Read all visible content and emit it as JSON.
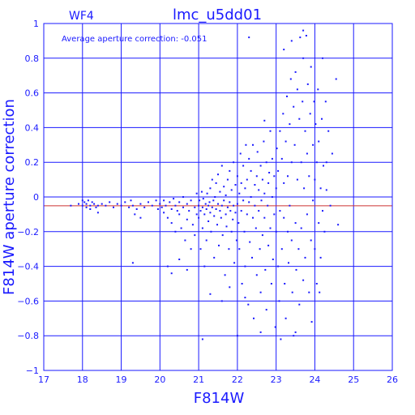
{
  "chart_data": {
    "type": "scatter",
    "title": "lmc_u5dd01",
    "panel_label": "WF4",
    "xlabel": "F814W",
    "ylabel": "F814W aperture correction",
    "annotation": "Average aperture correction: -0.051",
    "xlim": [
      17,
      26
    ],
    "ylim": [
      -1,
      1
    ],
    "x_ticks": [
      17,
      18,
      19,
      20,
      21,
      22,
      23,
      24,
      25,
      26
    ],
    "y_ticks": [
      -1,
      -0.8,
      -0.6,
      -0.4,
      -0.2,
      0,
      0.2,
      0.4,
      0.6,
      0.8,
      1
    ],
    "grid": true,
    "reference_line": {
      "y": -0.051,
      "color": "#cc3333"
    },
    "colors": {
      "axes": "#1a1aff",
      "points": "#1a1aff"
    },
    "points": [
      [
        17.7,
        -0.05
      ],
      [
        17.9,
        -0.04
      ],
      [
        18.0,
        -0.02
      ],
      [
        18.0,
        -0.05
      ],
      [
        18.05,
        -0.03
      ],
      [
        18.1,
        -0.06
      ],
      [
        18.1,
        -0.04
      ],
      [
        18.15,
        -0.02
      ],
      [
        18.2,
        -0.05
      ],
      [
        18.2,
        -0.07
      ],
      [
        18.25,
        -0.03
      ],
      [
        18.3,
        -0.04
      ],
      [
        18.35,
        -0.06
      ],
      [
        18.4,
        -0.05
      ],
      [
        18.4,
        -0.09
      ],
      [
        18.5,
        -0.04
      ],
      [
        18.6,
        -0.05
      ],
      [
        18.7,
        -0.03
      ],
      [
        18.8,
        -0.06
      ],
      [
        18.9,
        -0.04
      ],
      [
        19.0,
        -0.05
      ],
      [
        19.1,
        -0.03
      ],
      [
        19.2,
        -0.06
      ],
      [
        19.25,
        -0.02
      ],
      [
        19.3,
        -0.05
      ],
      [
        19.35,
        -0.1
      ],
      [
        19.4,
        -0.07
      ],
      [
        19.5,
        -0.04
      ],
      [
        19.5,
        -0.12
      ],
      [
        19.6,
        -0.06
      ],
      [
        19.7,
        -0.03
      ],
      [
        19.8,
        -0.05
      ],
      [
        19.9,
        -0.02
      ],
      [
        19.95,
        -0.07
      ],
      [
        19.3,
        -0.38
      ],
      [
        20.0,
        -0.04
      ],
      [
        20.05,
        -0.06
      ],
      [
        20.1,
        -0.02
      ],
      [
        20.1,
        -0.09
      ],
      [
        20.15,
        -0.05
      ],
      [
        20.2,
        -0.12
      ],
      [
        20.25,
        -0.03
      ],
      [
        20.3,
        -0.07
      ],
      [
        20.3,
        -0.15
      ],
      [
        20.35,
        -0.01
      ],
      [
        20.4,
        -0.05
      ],
      [
        20.4,
        -0.2
      ],
      [
        20.45,
        -0.08
      ],
      [
        20.5,
        -0.03
      ],
      [
        20.5,
        -0.1
      ],
      [
        20.55,
        -0.18
      ],
      [
        20.6,
        -0.06
      ],
      [
        20.6,
        0.0
      ],
      [
        20.65,
        -0.25
      ],
      [
        20.7,
        -0.04
      ],
      [
        20.7,
        -0.13
      ],
      [
        20.75,
        -0.08
      ],
      [
        20.8,
        -0.3
      ],
      [
        20.8,
        -0.02
      ],
      [
        20.85,
        -0.16
      ],
      [
        20.9,
        -0.06
      ],
      [
        20.9,
        -0.22
      ],
      [
        20.95,
        -0.1
      ],
      [
        20.95,
        0.02
      ],
      [
        20.2,
        -0.4
      ],
      [
        20.3,
        -0.44
      ],
      [
        20.5,
        -0.36
      ],
      [
        20.7,
        -0.42
      ],
      [
        21.0,
        -0.05
      ],
      [
        21.0,
        -0.12
      ],
      [
        21.02,
        -0.02
      ],
      [
        21.05,
        -0.08
      ],
      [
        21.05,
        -0.3
      ],
      [
        21.08,
        0.03
      ],
      [
        21.1,
        -0.06
      ],
      [
        21.1,
        -0.18
      ],
      [
        21.12,
        -0.01
      ],
      [
        21.15,
        -0.1
      ],
      [
        21.15,
        -0.4
      ],
      [
        21.18,
        -0.04
      ],
      [
        21.2,
        -0.07
      ],
      [
        21.2,
        -0.25
      ],
      [
        21.22,
        0.02
      ],
      [
        21.25,
        -0.05
      ],
      [
        21.25,
        -0.14
      ],
      [
        21.28,
        -0.03
      ],
      [
        21.3,
        -0.09
      ],
      [
        21.3,
        0.05
      ],
      [
        21.32,
        -0.2
      ],
      [
        21.35,
        -0.06
      ],
      [
        21.35,
        0.1
      ],
      [
        21.38,
        -0.02
      ],
      [
        21.4,
        -0.11
      ],
      [
        21.4,
        -0.35
      ],
      [
        21.42,
        0.0
      ],
      [
        21.45,
        -0.07
      ],
      [
        21.45,
        0.08
      ],
      [
        21.48,
        -0.16
      ],
      [
        21.5,
        -0.04
      ],
      [
        21.5,
        0.13
      ],
      [
        21.52,
        -0.28
      ],
      [
        21.55,
        -0.08
      ],
      [
        21.55,
        0.03
      ],
      [
        21.58,
        -0.12
      ],
      [
        21.6,
        -0.05
      ],
      [
        21.6,
        0.18
      ],
      [
        21.62,
        -0.22
      ],
      [
        21.65,
        -0.02
      ],
      [
        21.65,
        0.06
      ],
      [
        21.68,
        -0.45
      ],
      [
        21.7,
        -0.1
      ],
      [
        21.7,
        0.01
      ],
      [
        21.72,
        -0.17
      ],
      [
        21.75,
        -0.06
      ],
      [
        21.75,
        0.1
      ],
      [
        21.78,
        -0.3
      ],
      [
        21.8,
        -0.03
      ],
      [
        21.8,
        0.15
      ],
      [
        21.82,
        -0.08
      ],
      [
        21.85,
        -0.2
      ],
      [
        21.85,
        0.04
      ],
      [
        21.88,
        -0.13
      ],
      [
        21.9,
        -0.05
      ],
      [
        21.9,
        0.2
      ],
      [
        21.92,
        -0.38
      ],
      [
        21.95,
        -0.09
      ],
      [
        21.95,
        0.07
      ],
      [
        21.98,
        -0.25
      ],
      [
        21.1,
        -0.82
      ],
      [
        21.3,
        -0.56
      ],
      [
        21.6,
        -0.6
      ],
      [
        21.8,
        -0.52
      ],
      [
        22.0,
        -0.04
      ],
      [
        22.0,
        0.12
      ],
      [
        22.03,
        -0.15
      ],
      [
        22.05,
        0.02
      ],
      [
        22.05,
        -0.3
      ],
      [
        22.08,
        0.25
      ],
      [
        22.1,
        -0.08
      ],
      [
        22.1,
        0.08
      ],
      [
        22.12,
        -0.5
      ],
      [
        22.15,
        -0.02
      ],
      [
        22.15,
        0.18
      ],
      [
        22.18,
        -0.2
      ],
      [
        22.2,
        0.05
      ],
      [
        22.2,
        -0.4
      ],
      [
        22.22,
        0.3
      ],
      [
        22.25,
        -0.1
      ],
      [
        22.25,
        0.1
      ],
      [
        22.28,
        -0.62
      ],
      [
        22.3,
        -0.03
      ],
      [
        22.3,
        0.22
      ],
      [
        22.32,
        -0.26
      ],
      [
        22.35,
        0.0
      ],
      [
        22.35,
        0.15
      ],
      [
        22.38,
        -0.35
      ],
      [
        22.4,
        -0.12
      ],
      [
        22.4,
        0.3
      ],
      [
        22.42,
        -0.7
      ],
      [
        22.45,
        -0.05
      ],
      [
        22.45,
        0.07
      ],
      [
        22.48,
        -0.18
      ],
      [
        22.5,
        0.12
      ],
      [
        22.5,
        -0.45
      ],
      [
        22.52,
        0.26
      ],
      [
        22.55,
        -0.08
      ],
      [
        22.55,
        0.04
      ],
      [
        22.58,
        -0.3
      ],
      [
        22.6,
        0.18
      ],
      [
        22.6,
        -0.55
      ],
      [
        22.62,
        -0.02
      ],
      [
        22.65,
        0.1
      ],
      [
        22.65,
        -0.22
      ],
      [
        22.68,
        0.32
      ],
      [
        22.7,
        -0.12
      ],
      [
        22.7,
        0.02
      ],
      [
        22.72,
        -0.42
      ],
      [
        22.75,
        0.2
      ],
      [
        22.75,
        -0.65
      ],
      [
        22.78,
        -0.05
      ],
      [
        22.8,
        0.08
      ],
      [
        22.8,
        -0.28
      ],
      [
        22.82,
        0.14
      ],
      [
        22.85,
        -0.18
      ],
      [
        22.85,
        0.38
      ],
      [
        22.88,
        -0.5
      ],
      [
        22.9,
        0.0
      ],
      [
        22.9,
        0.22
      ],
      [
        22.92,
        -0.36
      ],
      [
        22.95,
        -0.1
      ],
      [
        22.95,
        0.12
      ],
      [
        22.98,
        -0.75
      ],
      [
        22.3,
        0.92
      ],
      [
        22.7,
        0.44
      ],
      [
        22.6,
        -0.78
      ],
      [
        22.2,
        -0.58
      ],
      [
        22.0,
        -0.8
      ],
      [
        23.0,
        0.05
      ],
      [
        23.0,
        -0.2
      ],
      [
        23.02,
        0.28
      ],
      [
        23.05,
        -0.4
      ],
      [
        23.05,
        0.15
      ],
      [
        23.08,
        -0.6
      ],
      [
        23.1,
        0.38
      ],
      [
        23.1,
        -0.08
      ],
      [
        23.12,
        -0.82
      ],
      [
        23.15,
        0.22
      ],
      [
        23.15,
        -0.3
      ],
      [
        23.18,
        0.48
      ],
      [
        23.2,
        -0.12
      ],
      [
        23.2,
        0.08
      ],
      [
        23.22,
        -0.5
      ],
      [
        23.25,
        0.32
      ],
      [
        23.25,
        -0.7
      ],
      [
        23.28,
        0.58
      ],
      [
        23.3,
        -0.2
      ],
      [
        23.3,
        0.12
      ],
      [
        23.32,
        -0.38
      ],
      [
        23.35,
        0.42
      ],
      [
        23.35,
        -0.05
      ],
      [
        23.38,
        0.68
      ],
      [
        23.4,
        -0.25
      ],
      [
        23.4,
        0.2
      ],
      [
        23.42,
        -0.55
      ],
      [
        23.45,
        0.52
      ],
      [
        23.45,
        -0.8
      ],
      [
        23.48,
        0.3
      ],
      [
        23.5,
        -0.15
      ],
      [
        23.5,
        0.72
      ],
      [
        23.52,
        -0.42
      ],
      [
        23.55,
        0.1
      ],
      [
        23.55,
        0.62
      ],
      [
        23.58,
        -0.3
      ],
      [
        23.6,
        0.45
      ],
      [
        23.6,
        -0.62
      ],
      [
        23.62,
        0.92
      ],
      [
        23.65,
        0.2
      ],
      [
        23.65,
        -0.18
      ],
      [
        23.68,
        0.55
      ],
      [
        23.7,
        -0.48
      ],
      [
        23.7,
        0.8
      ],
      [
        23.72,
        0.05
      ],
      [
        23.75,
        0.38
      ],
      [
        23.75,
        -0.35
      ],
      [
        23.78,
        0.93
      ],
      [
        23.8,
        -0.1
      ],
      [
        23.8,
        0.25
      ],
      [
        23.82,
        0.65
      ],
      [
        23.85,
        -0.55
      ],
      [
        23.85,
        0.12
      ],
      [
        23.88,
        0.48
      ],
      [
        23.9,
        -0.25
      ],
      [
        23.9,
        0.75
      ],
      [
        23.92,
        -0.72
      ],
      [
        23.95,
        0.3
      ],
      [
        23.95,
        -0.02
      ],
      [
        23.98,
        0.55
      ],
      [
        23.4,
        0.9
      ],
      [
        23.2,
        0.85
      ],
      [
        23.7,
        0.96
      ],
      [
        23.5,
        -0.78
      ],
      [
        24.0,
        0.1
      ],
      [
        24.0,
        -0.3
      ],
      [
        24.02,
        0.42
      ],
      [
        24.05,
        -0.5
      ],
      [
        24.05,
        0.2
      ],
      [
        24.08,
        0.62
      ],
      [
        24.1,
        -0.15
      ],
      [
        24.1,
        0.32
      ],
      [
        24.12,
        -0.55
      ],
      [
        24.15,
        0.05
      ],
      [
        24.18,
        0.45
      ],
      [
        24.2,
        -0.08
      ],
      [
        24.2,
        0.8
      ],
      [
        24.22,
        0.18
      ],
      [
        24.25,
        -0.2
      ],
      [
        24.28,
        0.55
      ],
      [
        24.3,
        0.2
      ],
      [
        24.35,
        0.38
      ],
      [
        24.4,
        -0.05
      ],
      [
        24.45,
        0.25
      ],
      [
        24.55,
        0.68
      ],
      [
        24.6,
        -0.16
      ],
      [
        24.3,
        0.04
      ],
      [
        24.15,
        -0.35
      ]
    ]
  }
}
